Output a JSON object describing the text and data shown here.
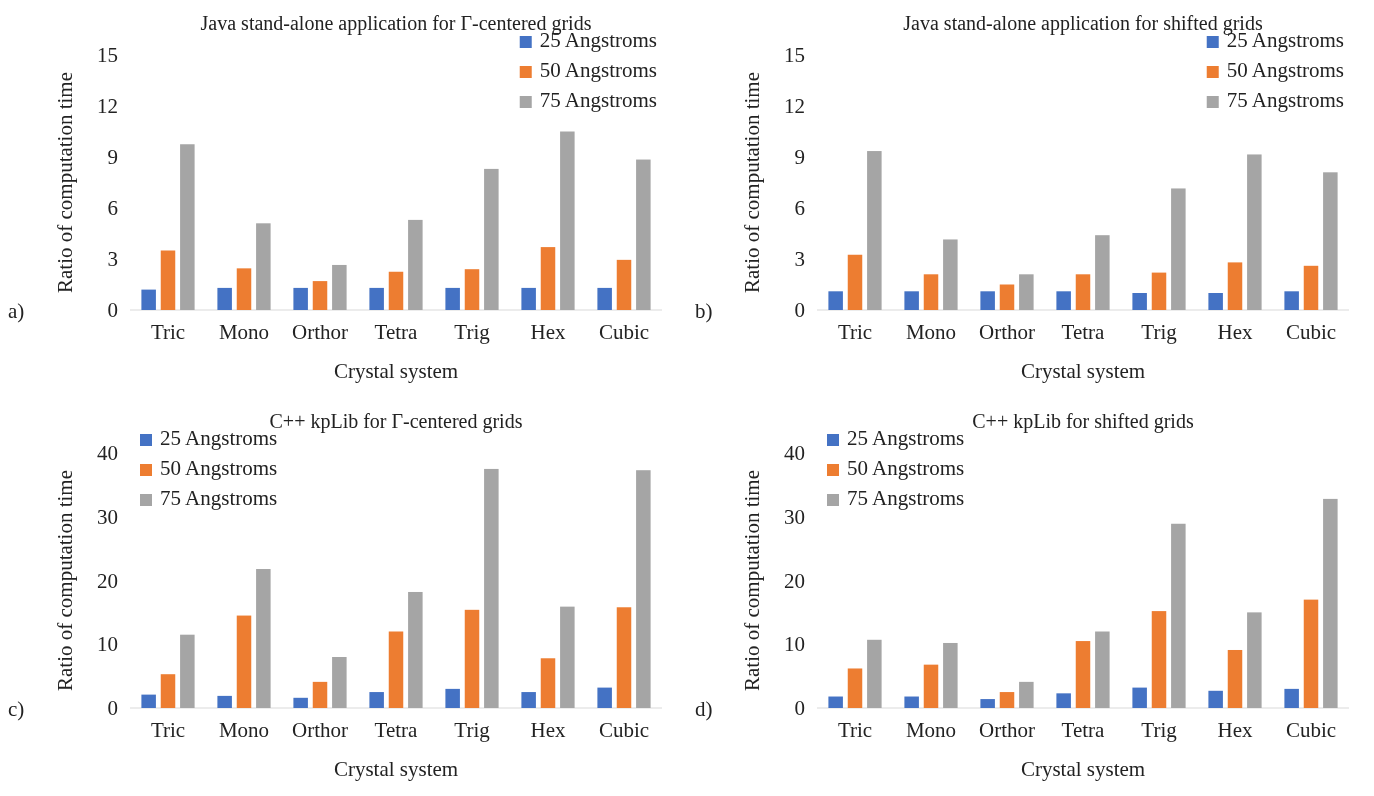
{
  "chart_data": [
    {
      "type": "bar",
      "title": "Java stand-alone application for Γ-centered grids",
      "xlabel": "Crystal system",
      "ylabel": "Ratio of computation time",
      "annotations": [
        "a)"
      ],
      "categories": [
        "Tric",
        "Mono",
        "Orthor",
        "Tetra",
        "Trig",
        "Hex",
        "Cubic"
      ],
      "ylim": [
        0,
        15
      ],
      "yticks": [
        0,
        3,
        6,
        9,
        12,
        15
      ],
      "grid": false,
      "legend": "top right",
      "series": [
        {
          "name": "25 Angstroms",
          "color": "#4472c4",
          "values": [
            1.2,
            1.3,
            1.3,
            1.3,
            1.3,
            1.3,
            1.3
          ]
        },
        {
          "name": "50 Angstroms",
          "color": "#ed7d31",
          "values": [
            3.5,
            2.45,
            1.7,
            2.25,
            2.4,
            3.7,
            2.95
          ]
        },
        {
          "name": "75 Angstroms",
          "color": "#a5a5a5",
          "values": [
            9.75,
            5.1,
            2.65,
            5.3,
            8.3,
            10.5,
            8.85
          ]
        }
      ]
    },
    {
      "type": "bar",
      "title": "Java stand-alone application for shifted grids",
      "xlabel": "Crystal system",
      "ylabel": "Ratio of computation time",
      "annotations": [
        "b)"
      ],
      "categories": [
        "Tric",
        "Mono",
        "Orthor",
        "Tetra",
        "Trig",
        "Hex",
        "Cubic"
      ],
      "ylim": [
        0,
        15
      ],
      "yticks": [
        0,
        3,
        6,
        9,
        12,
        15
      ],
      "grid": false,
      "legend": "top right",
      "series": [
        {
          "name": "25 Angstroms",
          "color": "#4472c4",
          "values": [
            1.1,
            1.1,
            1.1,
            1.1,
            1.0,
            1.0,
            1.1
          ]
        },
        {
          "name": "50 Angstroms",
          "color": "#ed7d31",
          "values": [
            3.25,
            2.1,
            1.5,
            2.1,
            2.2,
            2.8,
            2.6
          ]
        },
        {
          "name": "75 Angstroms",
          "color": "#a5a5a5",
          "values": [
            9.35,
            4.15,
            2.1,
            4.4,
            7.15,
            9.15,
            8.1
          ]
        }
      ]
    },
    {
      "type": "bar",
      "title": "C++ kpLib for Γ-centered grids",
      "xlabel": "Crystal system",
      "ylabel": "Ratio of computation time",
      "annotations": [
        "c)"
      ],
      "categories": [
        "Tric",
        "Mono",
        "Orthor",
        "Tetra",
        "Trig",
        "Hex",
        "Cubic"
      ],
      "ylim": [
        0,
        40
      ],
      "yticks": [
        0,
        10,
        20,
        30,
        40
      ],
      "grid": false,
      "legend": "top left",
      "series": [
        {
          "name": "25 Angstroms",
          "color": "#4472c4",
          "values": [
            2.1,
            1.9,
            1.6,
            2.5,
            3.0,
            2.5,
            3.2
          ]
        },
        {
          "name": "50 Angstroms",
          "color": "#ed7d31",
          "values": [
            5.3,
            14.5,
            4.1,
            12.0,
            15.4,
            7.8,
            15.8
          ]
        },
        {
          "name": "75 Angstroms",
          "color": "#a5a5a5",
          "values": [
            11.5,
            21.8,
            8.0,
            18.2,
            37.5,
            15.9,
            37.3
          ]
        }
      ]
    },
    {
      "type": "bar",
      "title": "C++ kpLib for shifted grids",
      "xlabel": "Crystal system",
      "ylabel": "Ratio of computation time",
      "annotations": [
        "d)"
      ],
      "categories": [
        "Tric",
        "Mono",
        "Orthor",
        "Tetra",
        "Trig",
        "Hex",
        "Cubic"
      ],
      "ylim": [
        0,
        40
      ],
      "yticks": [
        0,
        10,
        20,
        30,
        40
      ],
      "grid": false,
      "legend": "top left",
      "series": [
        {
          "name": "25 Angstroms",
          "color": "#4472c4",
          "values": [
            1.8,
            1.8,
            1.4,
            2.3,
            3.2,
            2.7,
            3.0
          ]
        },
        {
          "name": "50 Angstroms",
          "color": "#ed7d31",
          "values": [
            6.2,
            6.8,
            2.5,
            10.5,
            15.2,
            9.1,
            17.0
          ]
        },
        {
          "name": "75 Angstroms",
          "color": "#a5a5a5",
          "values": [
            10.7,
            10.2,
            4.1,
            12.0,
            28.9,
            15.0,
            32.8
          ]
        }
      ]
    }
  ]
}
